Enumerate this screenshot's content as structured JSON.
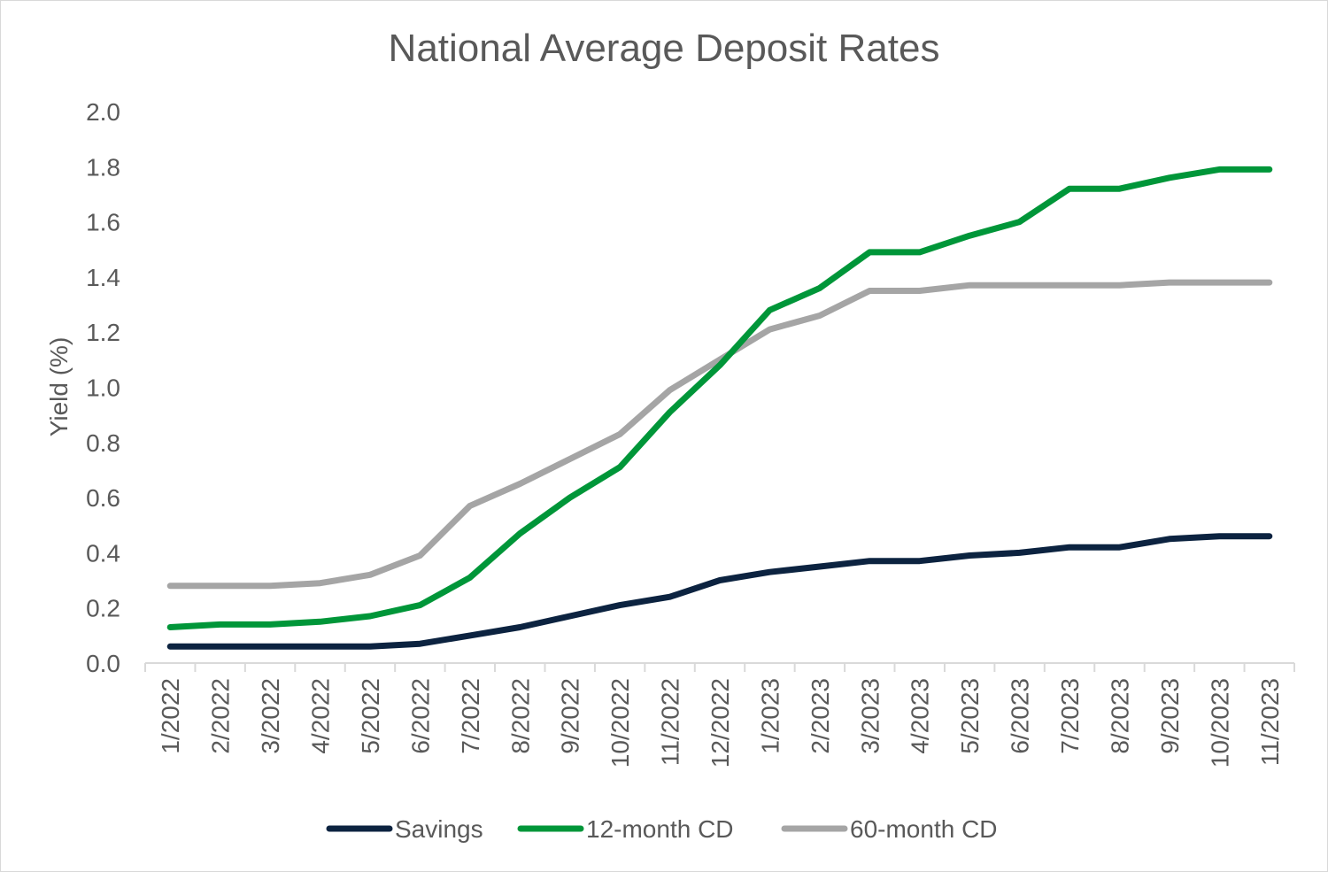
{
  "chart_data": {
    "type": "line",
    "title": "National Average Deposit Rates",
    "xlabel": "",
    "ylabel": "Yield (%)",
    "ylim": [
      0,
      2.0
    ],
    "yticks": [
      "0.0",
      "0.2",
      "0.4",
      "0.6",
      "0.8",
      "1.0",
      "1.2",
      "1.4",
      "1.6",
      "1.8",
      "2.0"
    ],
    "grid": false,
    "legend": "bottom",
    "categories": [
      "1/2022",
      "2/2022",
      "3/2022",
      "4/2022",
      "5/2022",
      "6/2022",
      "7/2022",
      "8/2022",
      "9/2022",
      "10/2022",
      "11/2022",
      "12/2022",
      "1/2023",
      "2/2023",
      "3/2023",
      "4/2023",
      "5/2023",
      "6/2023",
      "7/2023",
      "8/2023",
      "9/2023",
      "10/2023",
      "11/2023"
    ],
    "series": [
      {
        "name": "Savings",
        "color": "#0c2340",
        "values": [
          0.06,
          0.06,
          0.06,
          0.06,
          0.06,
          0.07,
          0.1,
          0.13,
          0.17,
          0.21,
          0.24,
          0.3,
          0.33,
          0.35,
          0.37,
          0.37,
          0.39,
          0.4,
          0.42,
          0.42,
          0.45,
          0.46,
          0.46
        ]
      },
      {
        "name": "12-month CD",
        "color": "#009639",
        "values": [
          0.13,
          0.14,
          0.14,
          0.15,
          0.17,
          0.21,
          0.31,
          0.47,
          0.6,
          0.71,
          0.91,
          1.08,
          1.28,
          1.36,
          1.49,
          1.49,
          1.55,
          1.6,
          1.72,
          1.72,
          1.76,
          1.79,
          1.79
        ]
      },
      {
        "name": "60-month CD",
        "color": "#a5a5a5",
        "values": [
          0.28,
          0.28,
          0.28,
          0.29,
          0.32,
          0.39,
          0.57,
          0.65,
          0.74,
          0.83,
          0.99,
          1.1,
          1.21,
          1.26,
          1.35,
          1.35,
          1.37,
          1.37,
          1.37,
          1.37,
          1.38,
          1.38,
          1.38
        ]
      }
    ]
  }
}
